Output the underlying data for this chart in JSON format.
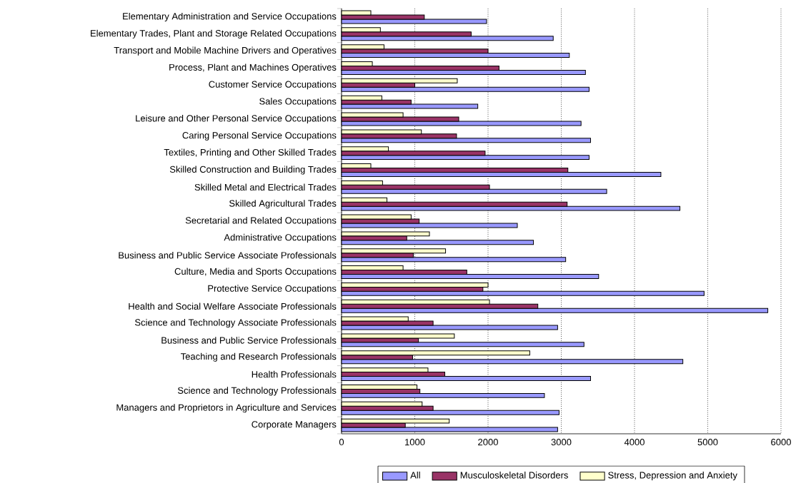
{
  "chart_data": {
    "type": "bar",
    "orientation": "horizontal",
    "categories": [
      "Elementary Administration and Service Occupations",
      "Elementary Trades, Plant and Storage Related Occupations",
      "Transport and Mobile Machine Drivers and Operatives",
      "Process, Plant and Machines Operatives",
      "Customer Service Occupations",
      "Sales Occupations",
      "Leisure and Other Personal Service Occupations",
      "Caring Personal Service Occupations",
      "Textiles, Printing and Other Skilled Trades",
      "Skilled Construction and Building Trades",
      "Skilled Metal and Electrical Trades",
      "Skilled Agricultural Trades",
      "Secretarial and Related Occupations",
      "Administrative Occupations",
      "Business and Public Service Associate Professionals",
      "Culture, Media and Sports Occupations",
      "Protective Service Occupations",
      "Health and Social Welfare Associate Professionals",
      "Science and Technology Associate Professionals",
      "Business and Public Service Professionals",
      "Teaching and Research Professionals",
      "Health Professionals",
      "Science and Technology Professionals",
      "Managers and Proprietors in Agriculture and Services",
      "Corporate Managers"
    ],
    "series": [
      {
        "name": "All",
        "color": "#9999ff",
        "values": [
          1980,
          2890,
          3110,
          3330,
          3380,
          1860,
          3270,
          3400,
          3380,
          4360,
          3620,
          4620,
          2400,
          2620,
          3060,
          3510,
          4950,
          5820,
          2950,
          3310,
          4660,
          3400,
          2770,
          2970,
          2950
        ]
      },
      {
        "name": "Musculoskeletal Disorders",
        "color": "#993366",
        "values": [
          1130,
          1770,
          2000,
          2150,
          1000,
          950,
          1600,
          1570,
          1960,
          3090,
          2020,
          3080,
          1060,
          890,
          980,
          1710,
          1930,
          2680,
          1250,
          1050,
          970,
          1410,
          1070,
          1250,
          870
        ]
      },
      {
        "name": "Stress, Depression and Anxiety",
        "color": "#ffffcc",
        "values": [
          400,
          530,
          580,
          420,
          1580,
          550,
          840,
          1090,
          640,
          400,
          560,
          620,
          950,
          1200,
          1420,
          840,
          2000,
          2020,
          910,
          1540,
          2570,
          1180,
          1030,
          1100,
          1470
        ]
      }
    ],
    "xlim": [
      0,
      6000
    ],
    "xticks": [
      0,
      1000,
      2000,
      3000,
      4000,
      5000,
      6000
    ],
    "grid": "x",
    "legend": "bottom"
  }
}
